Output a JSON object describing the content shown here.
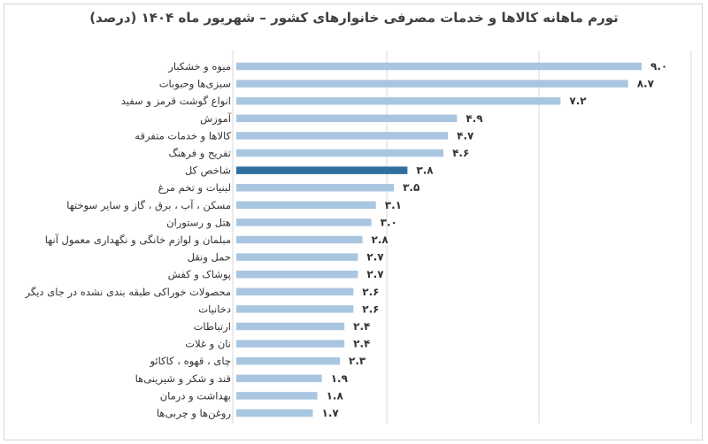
{
  "chart_data": {
    "type": "bar",
    "orientation": "horizontal",
    "title": "تورم ماهانه کالاها و خدمات مصرفی خانوارهای کشور – شهریور ماه ۱۴۰۴ (درصد)",
    "categories": [
      "میوه و خشکبار",
      "سبزی‌ها وحبوبات",
      "انواع گوشت قرمز و سفید",
      "آموزش",
      "کالاها و خدمات متفرقه",
      "تفریح و فرهنگ",
      "شاخص کل",
      "لبنیات و تخم مرغ",
      "مسکن ، آب ، برق ، گاز و سایر سوختها",
      "هتل و رستوران",
      "مبلمان و لوازم خانگی و نگهداری معمول آنها",
      "حمل ونقل",
      "پوشاک و کفش",
      "محصولات خوراکی طبقه بندی نشده در جای دیگر",
      "دخانیات",
      "ارتباطات",
      "نان و غلات",
      "چای ، قهوه ، کاکائو",
      "قند و شکر و شیرینی‌ها",
      "بهداشت و درمان",
      "روغن‌ها و چربی‌ها"
    ],
    "values": [
      9.0,
      8.7,
      7.2,
      4.9,
      4.7,
      4.6,
      3.8,
      3.5,
      3.1,
      3.0,
      2.8,
      2.7,
      2.7,
      2.6,
      2.6,
      2.4,
      2.4,
      2.3,
      1.9,
      1.8,
      1.7
    ],
    "value_labels": [
      "۹.۰",
      "۸.۷",
      "۷.۲",
      "۴.۹",
      "۴.۷",
      "۴.۶",
      "۳.۸",
      "۳.۵",
      "۳.۱",
      "۳.۰",
      "۲.۸",
      "۲.۷",
      "۲.۷",
      "۲.۶",
      "۲.۶",
      "۲.۴",
      "۲.۴",
      "۲.۳",
      "۱.۹",
      "۱.۸",
      "۱.۷"
    ],
    "highlight_index": 6,
    "xlim": [
      0,
      9.0
    ],
    "grid": true,
    "legend": "none",
    "colors": {
      "bar": "#a9c6e1",
      "highlight": "#2e6f9e",
      "grid": "#d9d9d9",
      "text": "#333333"
    }
  }
}
